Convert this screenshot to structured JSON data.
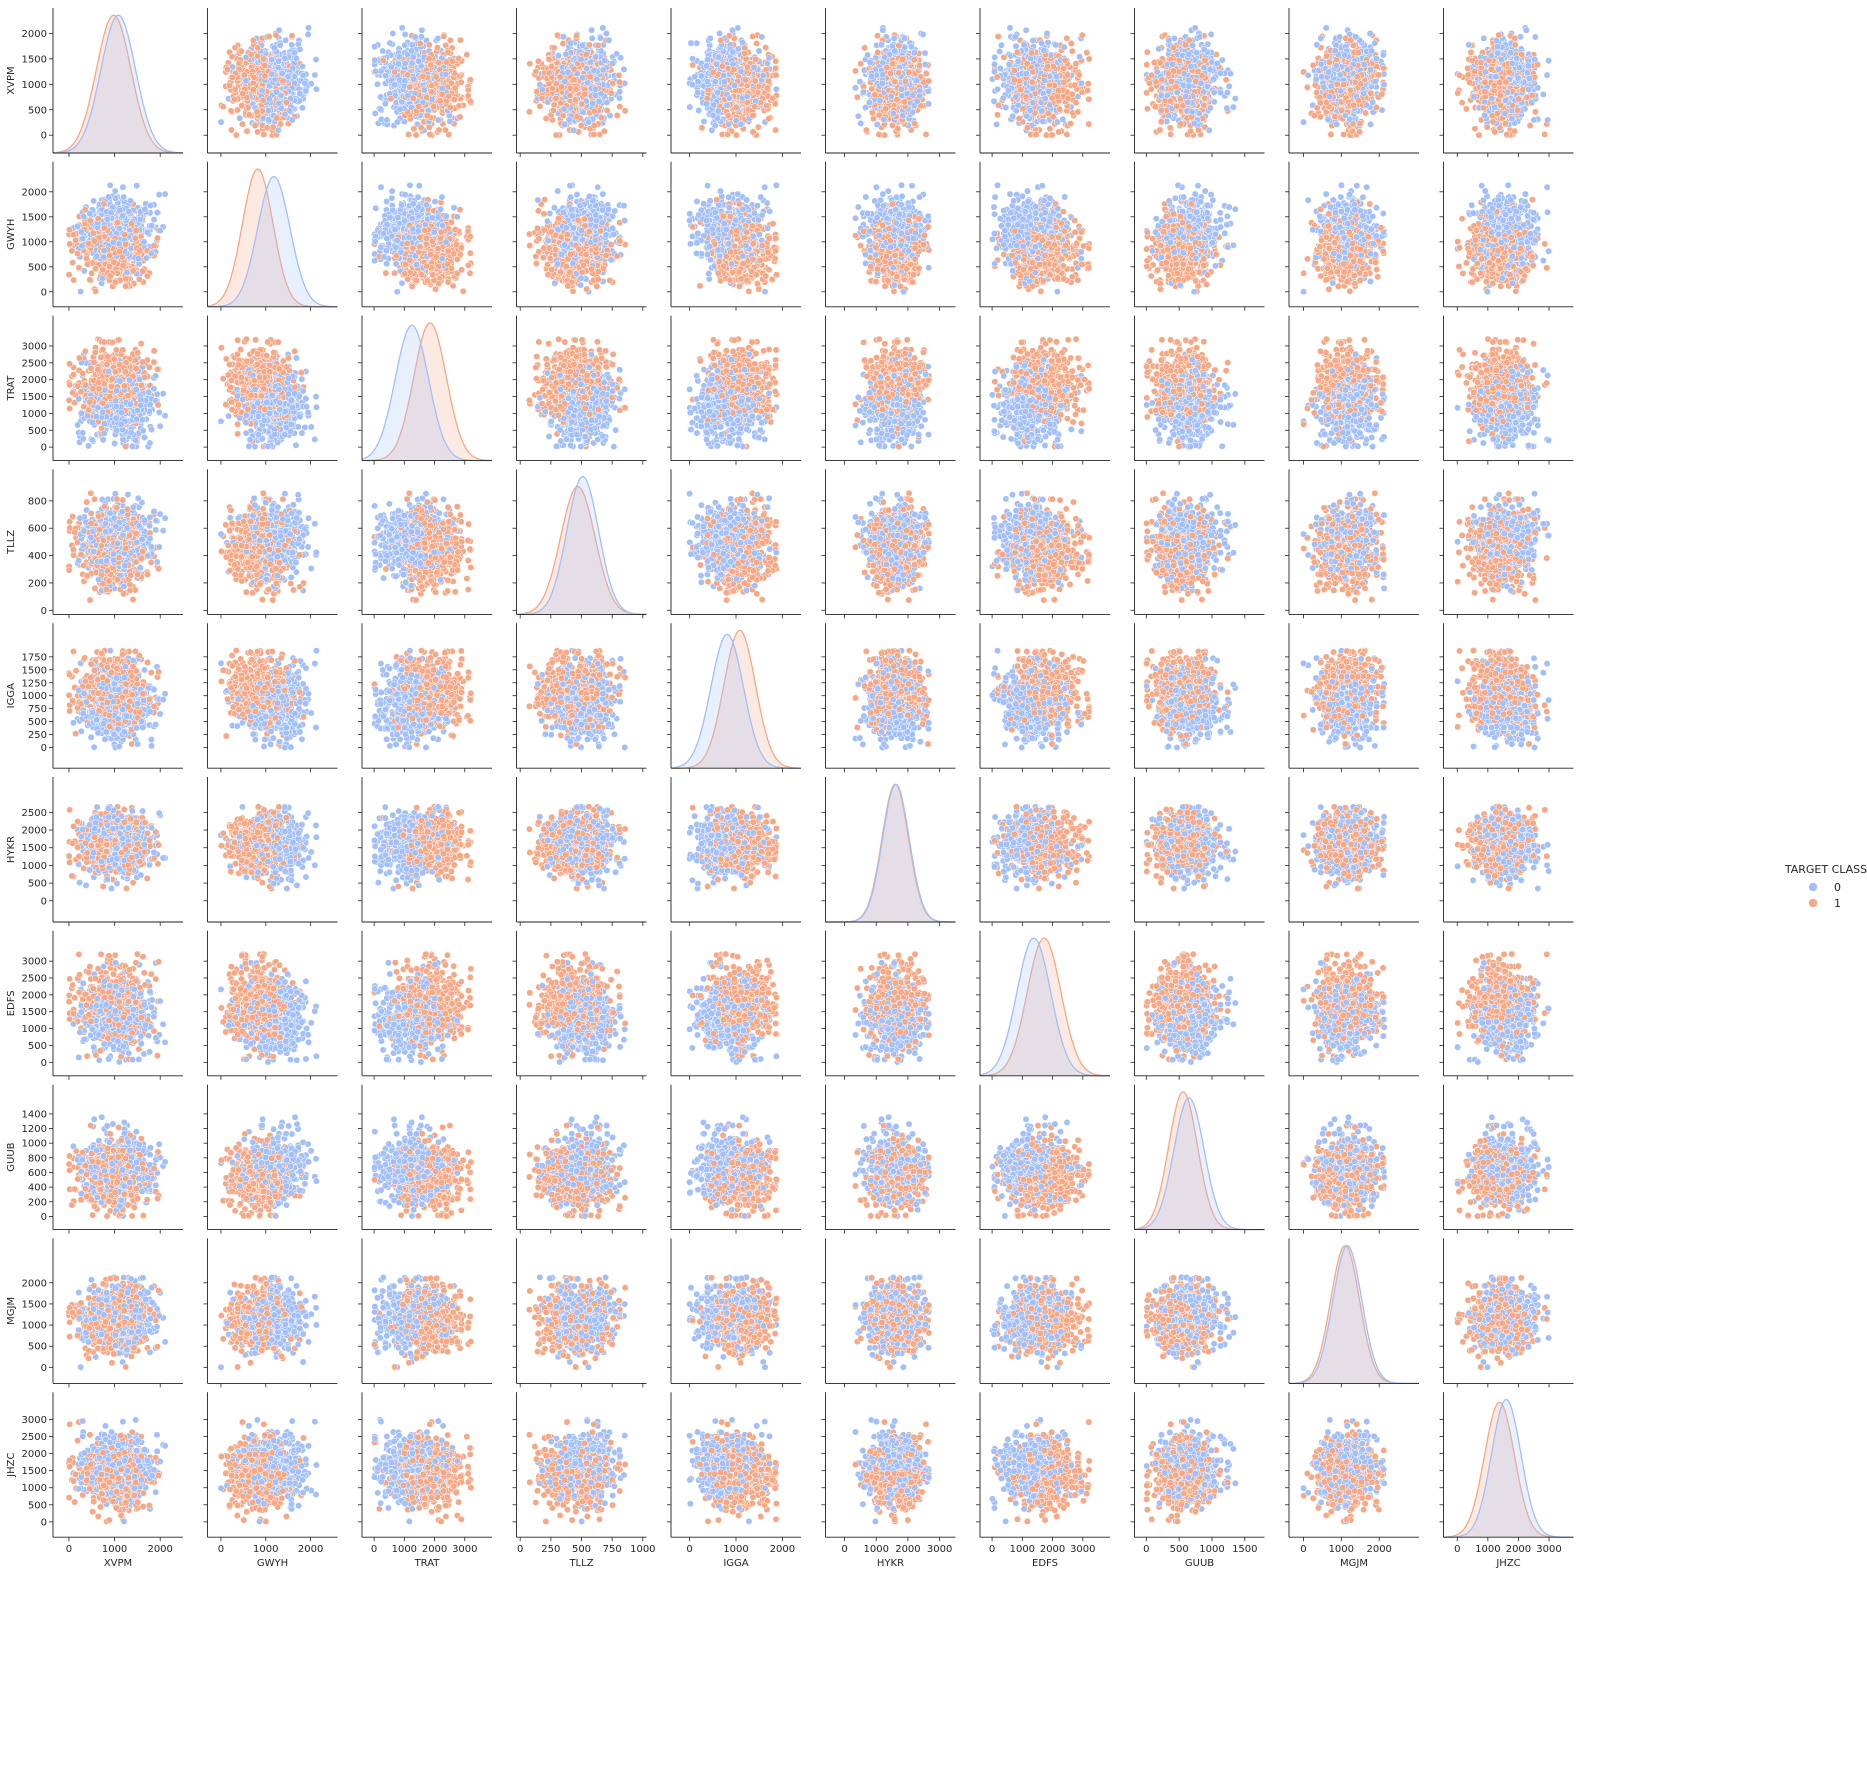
{
  "chart_data": {
    "type": "scatter",
    "kind": "pairplot",
    "diagonal": "kde",
    "variables": [
      "XVPM",
      "GWYH",
      "TRAT",
      "TLLZ",
      "IGGA",
      "HYKR",
      "EDFS",
      "GUUB",
      "MGJM",
      "JHZC"
    ],
    "axes": {
      "XVPM": {
        "range": [
          -350,
          2500
        ],
        "ticks": [
          0,
          1000,
          2000
        ],
        "yticks": [
          0,
          500,
          1000,
          1500,
          2000
        ]
      },
      "GWYH": {
        "range": [
          -300,
          2600
        ],
        "ticks": [
          0,
          1000,
          2000
        ],
        "yticks": [
          0,
          500,
          1000,
          1500,
          2000
        ]
      },
      "TRAT": {
        "range": [
          -400,
          3900
        ],
        "ticks": [
          0,
          1000,
          2000,
          3000
        ],
        "yticks": [
          0,
          500,
          1000,
          1500,
          2000,
          2500,
          3000
        ]
      },
      "TLLZ": {
        "range": [
          -30,
          1030
        ],
        "ticks": [
          0,
          250,
          500,
          750,
          1000
        ],
        "yticks": [
          0,
          200,
          400,
          600,
          800
        ]
      },
      "IGGA": {
        "range": [
          -400,
          2400
        ],
        "ticks": [
          0,
          1000,
          2000
        ],
        "yticks": [
          0,
          250,
          500,
          750,
          1000,
          1250,
          1500,
          1750
        ]
      },
      "HYKR": {
        "range": [
          -600,
          3500
        ],
        "ticks": [
          0,
          1000,
          2000,
          3000
        ],
        "yticks": [
          0,
          500,
          1000,
          1500,
          2000,
          2500
        ]
      },
      "EDFS": {
        "range": [
          -400,
          3900
        ],
        "ticks": [
          0,
          1000,
          2000,
          3000
        ],
        "yticks": [
          0,
          500,
          1000,
          1500,
          2000,
          2500,
          3000
        ]
      },
      "GUUB": {
        "range": [
          -180,
          1800
        ],
        "ticks": [
          0,
          500,
          1000,
          1500
        ],
        "yticks": [
          0,
          200,
          400,
          600,
          800,
          1000,
          1200,
          1400
        ]
      },
      "MGJM": {
        "range": [
          -380,
          3050
        ],
        "ticks": [
          0,
          1000,
          2000
        ],
        "yticks": [
          0,
          500,
          1000,
          1500,
          2000
        ]
      },
      "JHZC": {
        "range": [
          -450,
          3800
        ],
        "ticks": [
          0,
          1000,
          2000,
          3000
        ],
        "yticks": [
          0,
          500,
          1000,
          1500,
          2000,
          2500,
          3000
        ]
      }
    },
    "class_stats": {
      "0": {
        "mean": [
          1080,
          1180,
          1250,
          510,
          810,
          1620,
          1380,
          650,
          1160,
          1600
        ],
        "sd": [
          380,
          360,
          550,
          130,
          350,
          420,
          560,
          230,
          380,
          480
        ]
      },
      "1": {
        "mean": [
          980,
          820,
          1850,
          470,
          1080,
          1600,
          1720,
          560,
          1100,
          1380
        ],
        "sd": [
          380,
          340,
          540,
          140,
          340,
          420,
          560,
          220,
          380,
          490
        ]
      }
    },
    "points_per_class": 480,
    "series": [
      {
        "name": "0",
        "color": "#a2bff7"
      },
      {
        "name": "1",
        "color": "#f5a886"
      }
    ],
    "legend": {
      "title": "TARGET CLASS",
      "entries": [
        "0",
        "1"
      ],
      "placement": "right"
    },
    "grid": false
  }
}
